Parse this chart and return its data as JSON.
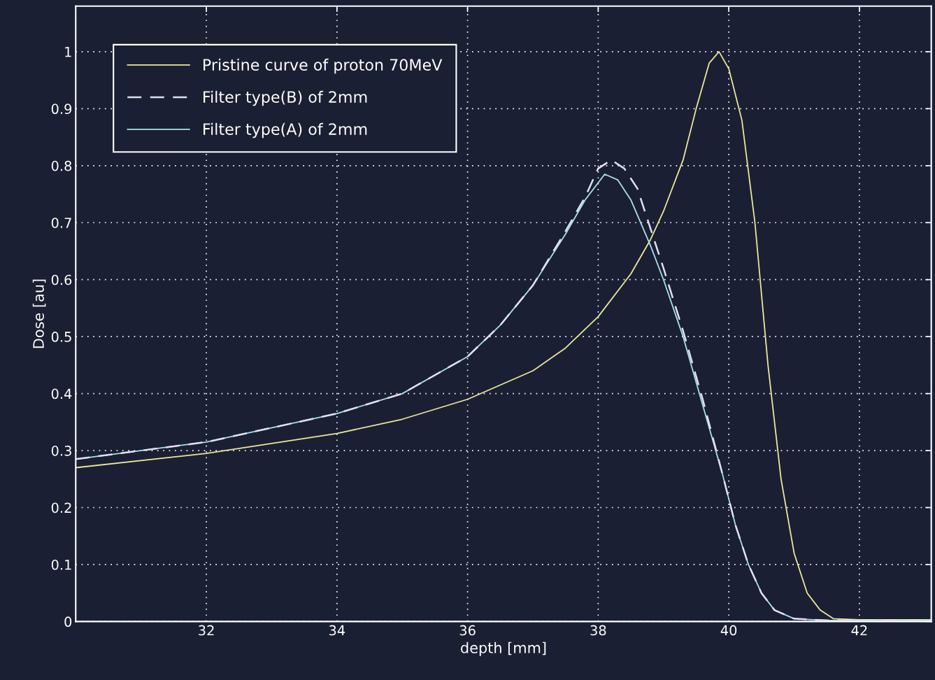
{
  "chart_data": {
    "type": "line",
    "xlabel": "depth [mm]",
    "ylabel": "Dose [au]",
    "xlim": [
      30,
      43.1
    ],
    "ylim": [
      0,
      1.08
    ],
    "xticks": [
      32,
      34,
      36,
      38,
      40,
      42
    ],
    "yticks": [
      0,
      0.1,
      0.2,
      0.3,
      0.4,
      0.5,
      0.6,
      0.7,
      0.8,
      0.9,
      1
    ],
    "grid": true,
    "legend": "top left",
    "marker": "none",
    "series": [
      {
        "name": "Pristine curve of proton 70MeV",
        "color": "#e8e89a",
        "line_style": "solid",
        "x": [
          30,
          32,
          34,
          35,
          36,
          37,
          37.5,
          38,
          38.5,
          38.8,
          39,
          39.3,
          39.5,
          39.7,
          39.85,
          40,
          40.2,
          40.4,
          40.6,
          40.8,
          41,
          41.2,
          41.4,
          41.6,
          42,
          43.1
        ],
        "values": [
          0.27,
          0.295,
          0.33,
          0.355,
          0.39,
          0.44,
          0.48,
          0.535,
          0.61,
          0.67,
          0.72,
          0.81,
          0.9,
          0.98,
          1.0,
          0.97,
          0.88,
          0.7,
          0.45,
          0.25,
          0.12,
          0.05,
          0.02,
          0.005,
          0.003,
          0.003
        ]
      },
      {
        "name": "Filter type(B) of 2mm",
        "color": "#e0e0ee",
        "line_style": "dashed",
        "x": [
          30,
          32,
          34,
          35,
          36,
          36.5,
          37,
          37.5,
          37.8,
          38,
          38.2,
          38.4,
          38.6,
          38.8,
          39,
          39.3,
          39.6,
          39.9,
          40.1,
          40.3,
          40.5,
          40.7,
          41,
          41.5,
          43.1
        ],
        "values": [
          0.285,
          0.315,
          0.365,
          0.4,
          0.465,
          0.52,
          0.59,
          0.685,
          0.745,
          0.795,
          0.81,
          0.795,
          0.76,
          0.69,
          0.62,
          0.51,
          0.39,
          0.26,
          0.17,
          0.1,
          0.05,
          0.02,
          0.005,
          0.002,
          0.002
        ]
      },
      {
        "name": "Filter type(A) of 2mm",
        "color": "#a8e0e8",
        "line_style": "solid",
        "x": [
          30,
          32,
          34,
          35,
          36,
          36.5,
          37,
          37.5,
          37.8,
          38.1,
          38.3,
          38.5,
          38.8,
          39,
          39.3,
          39.6,
          39.9,
          40.1,
          40.3,
          40.5,
          40.7,
          41,
          41.5,
          43.1
        ],
        "values": [
          0.285,
          0.315,
          0.365,
          0.4,
          0.465,
          0.52,
          0.59,
          0.68,
          0.74,
          0.785,
          0.775,
          0.74,
          0.66,
          0.6,
          0.5,
          0.38,
          0.26,
          0.17,
          0.1,
          0.05,
          0.02,
          0.005,
          0.002,
          0.002
        ]
      }
    ]
  }
}
